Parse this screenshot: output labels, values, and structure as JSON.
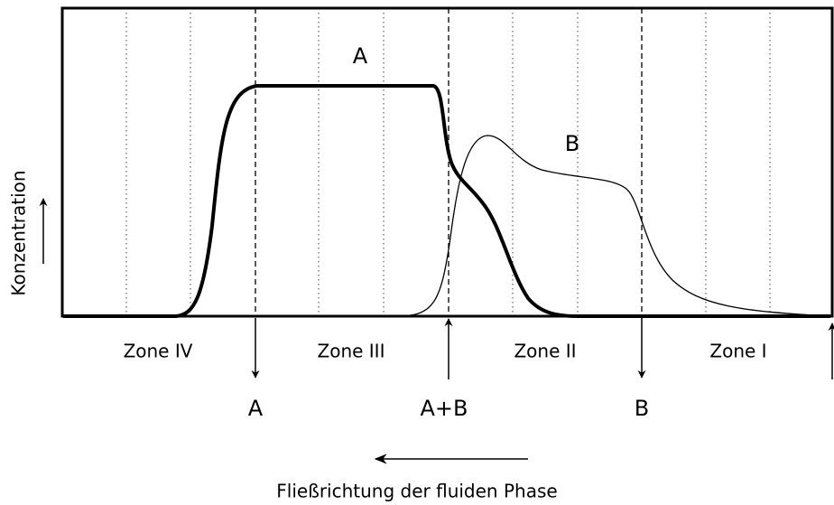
{
  "curve_labels": [
    "A",
    "B"
  ],
  "y_axis_label": "Konzentration",
  "zones": [
    "Zone IV",
    "Zone III",
    "Zone II",
    "Zone I"
  ],
  "ports": [
    "A",
    "A+B",
    "B"
  ],
  "flow_label": "Fließrichtung der fluiden Phase"
}
